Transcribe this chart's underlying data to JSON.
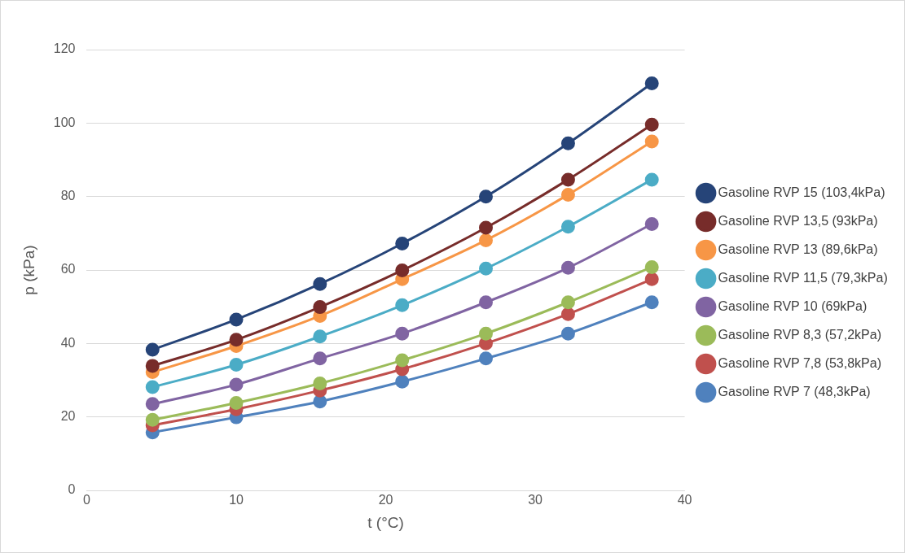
{
  "chart_data": {
    "type": "line",
    "xlabel": "t (°C)",
    "ylabel": "p (kPa)",
    "x": [
      4.4,
      10,
      15.6,
      21.1,
      26.7,
      32.2,
      37.8
    ],
    "xlim": [
      0,
      40
    ],
    "xticks": [
      0,
      10,
      20,
      30,
      40
    ],
    "ylim": [
      0,
      120
    ],
    "yticks": [
      0,
      20,
      40,
      60,
      80,
      100,
      120
    ],
    "grid": "y",
    "legend": "right",
    "marker": "circle",
    "line_style": "solid",
    "series": [
      {
        "name": "Gasoline RVP 15 (103,4kPa)",
        "color": "#264478",
        "values": [
          38.3,
          46.5,
          56.2,
          67.2,
          80,
          94.5,
          110.8
        ]
      },
      {
        "name": "Gasoline RVP 13,5 (93kPa)",
        "color": "#772c2a",
        "values": [
          33.9,
          41,
          49.9,
          59.9,
          71.5,
          84.6,
          99.6
        ]
      },
      {
        "name": "Gasoline RVP 13 (89,6kPa)",
        "color": "#f79646",
        "values": [
          32.2,
          39.3,
          47.5,
          57.5,
          68.1,
          80.5,
          95
        ]
      },
      {
        "name": "Gasoline RVP 11,5 (79,3kPa)",
        "color": "#4bacc6",
        "values": [
          28.1,
          34.2,
          41.9,
          50.4,
          60.4,
          71.8,
          84.6
        ]
      },
      {
        "name": "Gasoline RVP 10 (69kPa)",
        "color": "#8064a2",
        "values": [
          23.5,
          28.8,
          35.9,
          42.7,
          51.2,
          60.6,
          72.5
        ]
      },
      {
        "name": "Gasoline RVP 8,3 (57,2kPa)",
        "color": "#9bbb59",
        "values": [
          19.2,
          23.8,
          29.1,
          35.4,
          42.7,
          51.2,
          60.8
        ]
      },
      {
        "name": "Gasoline RVP 7,8 (53,8kPa)",
        "color": "#c0504d",
        "values": [
          17.7,
          22.1,
          27.2,
          33,
          40,
          48,
          57.5
        ]
      },
      {
        "name": "Gasoline RVP 7 (48,3kPa)",
        "color": "#4f81bd",
        "values": [
          15.8,
          19.9,
          24.2,
          29.6,
          35.9,
          42.7,
          51.2
        ]
      }
    ]
  }
}
